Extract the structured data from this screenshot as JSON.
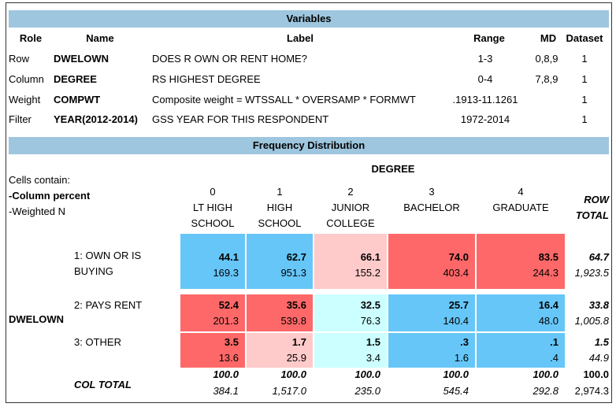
{
  "variables": {
    "title": "Variables",
    "headers": [
      "Role",
      "Name",
      "Label",
      "Range",
      "MD",
      "Dataset"
    ],
    "rows": [
      [
        "Row",
        "DWELOWN",
        "DOES R OWN OR RENT HOME?",
        "1-3",
        "0,8,9",
        "1"
      ],
      [
        "Column",
        "DEGREE",
        "RS HIGHEST DEGREE",
        "0-4",
        "7,8,9",
        "1"
      ],
      [
        "Weight",
        "COMPWT",
        "Composite weight = WTSSALL * OVERSAMP * FORMWT",
        ".1913-11.1261",
        "",
        "1"
      ],
      [
        "Filter",
        "YEAR(2012-2014)",
        "GSS YEAR FOR THIS RESPONDENT",
        "1972-2014",
        "",
        "1"
      ]
    ]
  },
  "frequency": {
    "title": "Frequency Distribution",
    "cells_contain": [
      "Cells contain:",
      "-Column percent",
      "-Weighted N"
    ],
    "column_variable": "DEGREE",
    "row_variable": "DWELOWN",
    "row_total_label": "ROW TOTAL",
    "columns": [
      {
        "code": "0",
        "label": "LT HIGH SCHOOL"
      },
      {
        "code": "1",
        "label": "HIGH SCHOOL"
      },
      {
        "code": "2",
        "label": "JUNIOR COLLEGE"
      },
      {
        "code": "3",
        "label": "BACHELOR"
      },
      {
        "code": "4",
        "label": "GRADUATE"
      }
    ],
    "rows": [
      {
        "label": "1: OWN OR IS BUYING",
        "cells": [
          {
            "pct": "44.1",
            "n": "169.3",
            "color": "#66c6f8"
          },
          {
            "pct": "62.7",
            "n": "951.3",
            "color": "#66c6f8"
          },
          {
            "pct": "66.1",
            "n": "155.2",
            "color": "#ffcaca"
          },
          {
            "pct": "74.0",
            "n": "403.4",
            "color": "#ff6868"
          },
          {
            "pct": "83.5",
            "n": "244.3",
            "color": "#ff6868"
          }
        ],
        "total": {
          "pct": "64.7",
          "n": "1,923.5"
        }
      },
      {
        "label": "2: PAYS RENT",
        "cells": [
          {
            "pct": "52.4",
            "n": "201.3",
            "color": "#ff6868"
          },
          {
            "pct": "35.6",
            "n": "539.8",
            "color": "#ff6868"
          },
          {
            "pct": "32.5",
            "n": "76.3",
            "color": "#ccffff"
          },
          {
            "pct": "25.7",
            "n": "140.4",
            "color": "#66c6f8"
          },
          {
            "pct": "16.4",
            "n": "48.0",
            "color": "#66c6f8"
          }
        ],
        "total": {
          "pct": "33.8",
          "n": "1,005.8"
        }
      },
      {
        "label": "3: OTHER",
        "cells": [
          {
            "pct": "3.5",
            "n": "13.6",
            "color": "#ff6868"
          },
          {
            "pct": "1.7",
            "n": "25.9",
            "color": "#ffcaca"
          },
          {
            "pct": "1.5",
            "n": "3.4",
            "color": "#ccffff"
          },
          {
            "pct": ".3",
            "n": "1.6",
            "color": "#66c6f8"
          },
          {
            "pct": ".1",
            "n": ".4",
            "color": "#66c6f8"
          }
        ],
        "total": {
          "pct": "1.5",
          "n": "44.9"
        }
      }
    ],
    "col_total": {
      "label": "COL TOTAL",
      "cells": [
        {
          "pct": "100.0",
          "n": "384.1"
        },
        {
          "pct": "100.0",
          "n": "1,517.0"
        },
        {
          "pct": "100.0",
          "n": "235.0"
        },
        {
          "pct": "100.0",
          "n": "545.4"
        },
        {
          "pct": "100.0",
          "n": "292.8"
        }
      ],
      "total": {
        "pct": "100.0",
        "n": "2,974.3"
      }
    }
  }
}
